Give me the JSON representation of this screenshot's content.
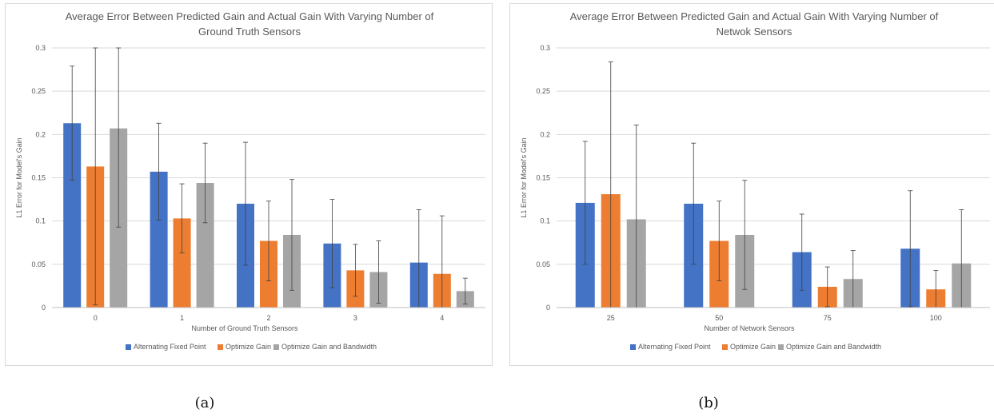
{
  "captions": [
    "(a)",
    "(b)"
  ],
  "chart_data": [
    {
      "type": "bar",
      "title_lines": [
        "Average Error Between Predicted Gain and Actual Gain With Varying Number of",
        "Ground Truth Sensors"
      ],
      "xlabel": "Number of Ground Truth Sensors",
      "ylabel": "L1 Error for Model's Gain",
      "categories": [
        "0",
        "1",
        "2",
        "3",
        "4"
      ],
      "yticks": [
        "0",
        "0.05",
        "0.1",
        "0.15",
        "0.2",
        "0.25",
        "0.3"
      ],
      "ylim": [
        0,
        0.3
      ],
      "grid": true,
      "legend_position": "bottom",
      "series": [
        {
          "name": "Alternating Fixed Point",
          "color": "#4472C4",
          "values": [
            0.213,
            0.157,
            0.12,
            0.074,
            0.052
          ],
          "error": [
            0.066,
            0.056,
            0.071,
            0.051,
            0.061
          ]
        },
        {
          "name": "Optimize Gain",
          "color": "#ED7D31",
          "values": [
            0.163,
            0.103,
            0.077,
            0.043,
            0.039
          ],
          "error": [
            0.16,
            0.04,
            0.046,
            0.03,
            0.067
          ]
        },
        {
          "name": "Optimize Gain and Bandwidth",
          "color": "#A5A5A5",
          "values": [
            0.207,
            0.144,
            0.084,
            0.041,
            0.019
          ],
          "error": [
            0.114,
            0.046,
            0.064,
            0.036,
            0.015
          ]
        }
      ]
    },
    {
      "type": "bar",
      "title_lines": [
        "Average Error Between Predicted Gain and Actual Gain With Varying Number of",
        "Netwok Sensors"
      ],
      "xlabel": "Number of Network Sensors",
      "ylabel": "L1 Error for Model's Gain",
      "categories": [
        "25",
        "50",
        "75",
        "100"
      ],
      "yticks": [
        "0",
        "0.05",
        "0.1",
        "0.15",
        "0.2",
        "0.25",
        "0.3"
      ],
      "ylim": [
        0,
        0.3
      ],
      "grid": true,
      "legend_position": "bottom",
      "series": [
        {
          "name": "Alternating Fixed Point",
          "color": "#4472C4",
          "values": [
            0.121,
            0.12,
            0.064,
            0.068
          ],
          "error": [
            0.071,
            0.07,
            0.044,
            0.067
          ]
        },
        {
          "name": "Optimize Gain",
          "color": "#ED7D31",
          "values": [
            0.131,
            0.077,
            0.024,
            0.021
          ],
          "error": [
            0.153,
            0.046,
            0.023,
            0.022
          ]
        },
        {
          "name": "Optimize Gain and Bandwidth",
          "color": "#A5A5A5",
          "values": [
            0.102,
            0.084,
            0.033,
            0.051
          ],
          "error": [
            0.109,
            0.063,
            0.033,
            0.062
          ]
        }
      ]
    }
  ]
}
